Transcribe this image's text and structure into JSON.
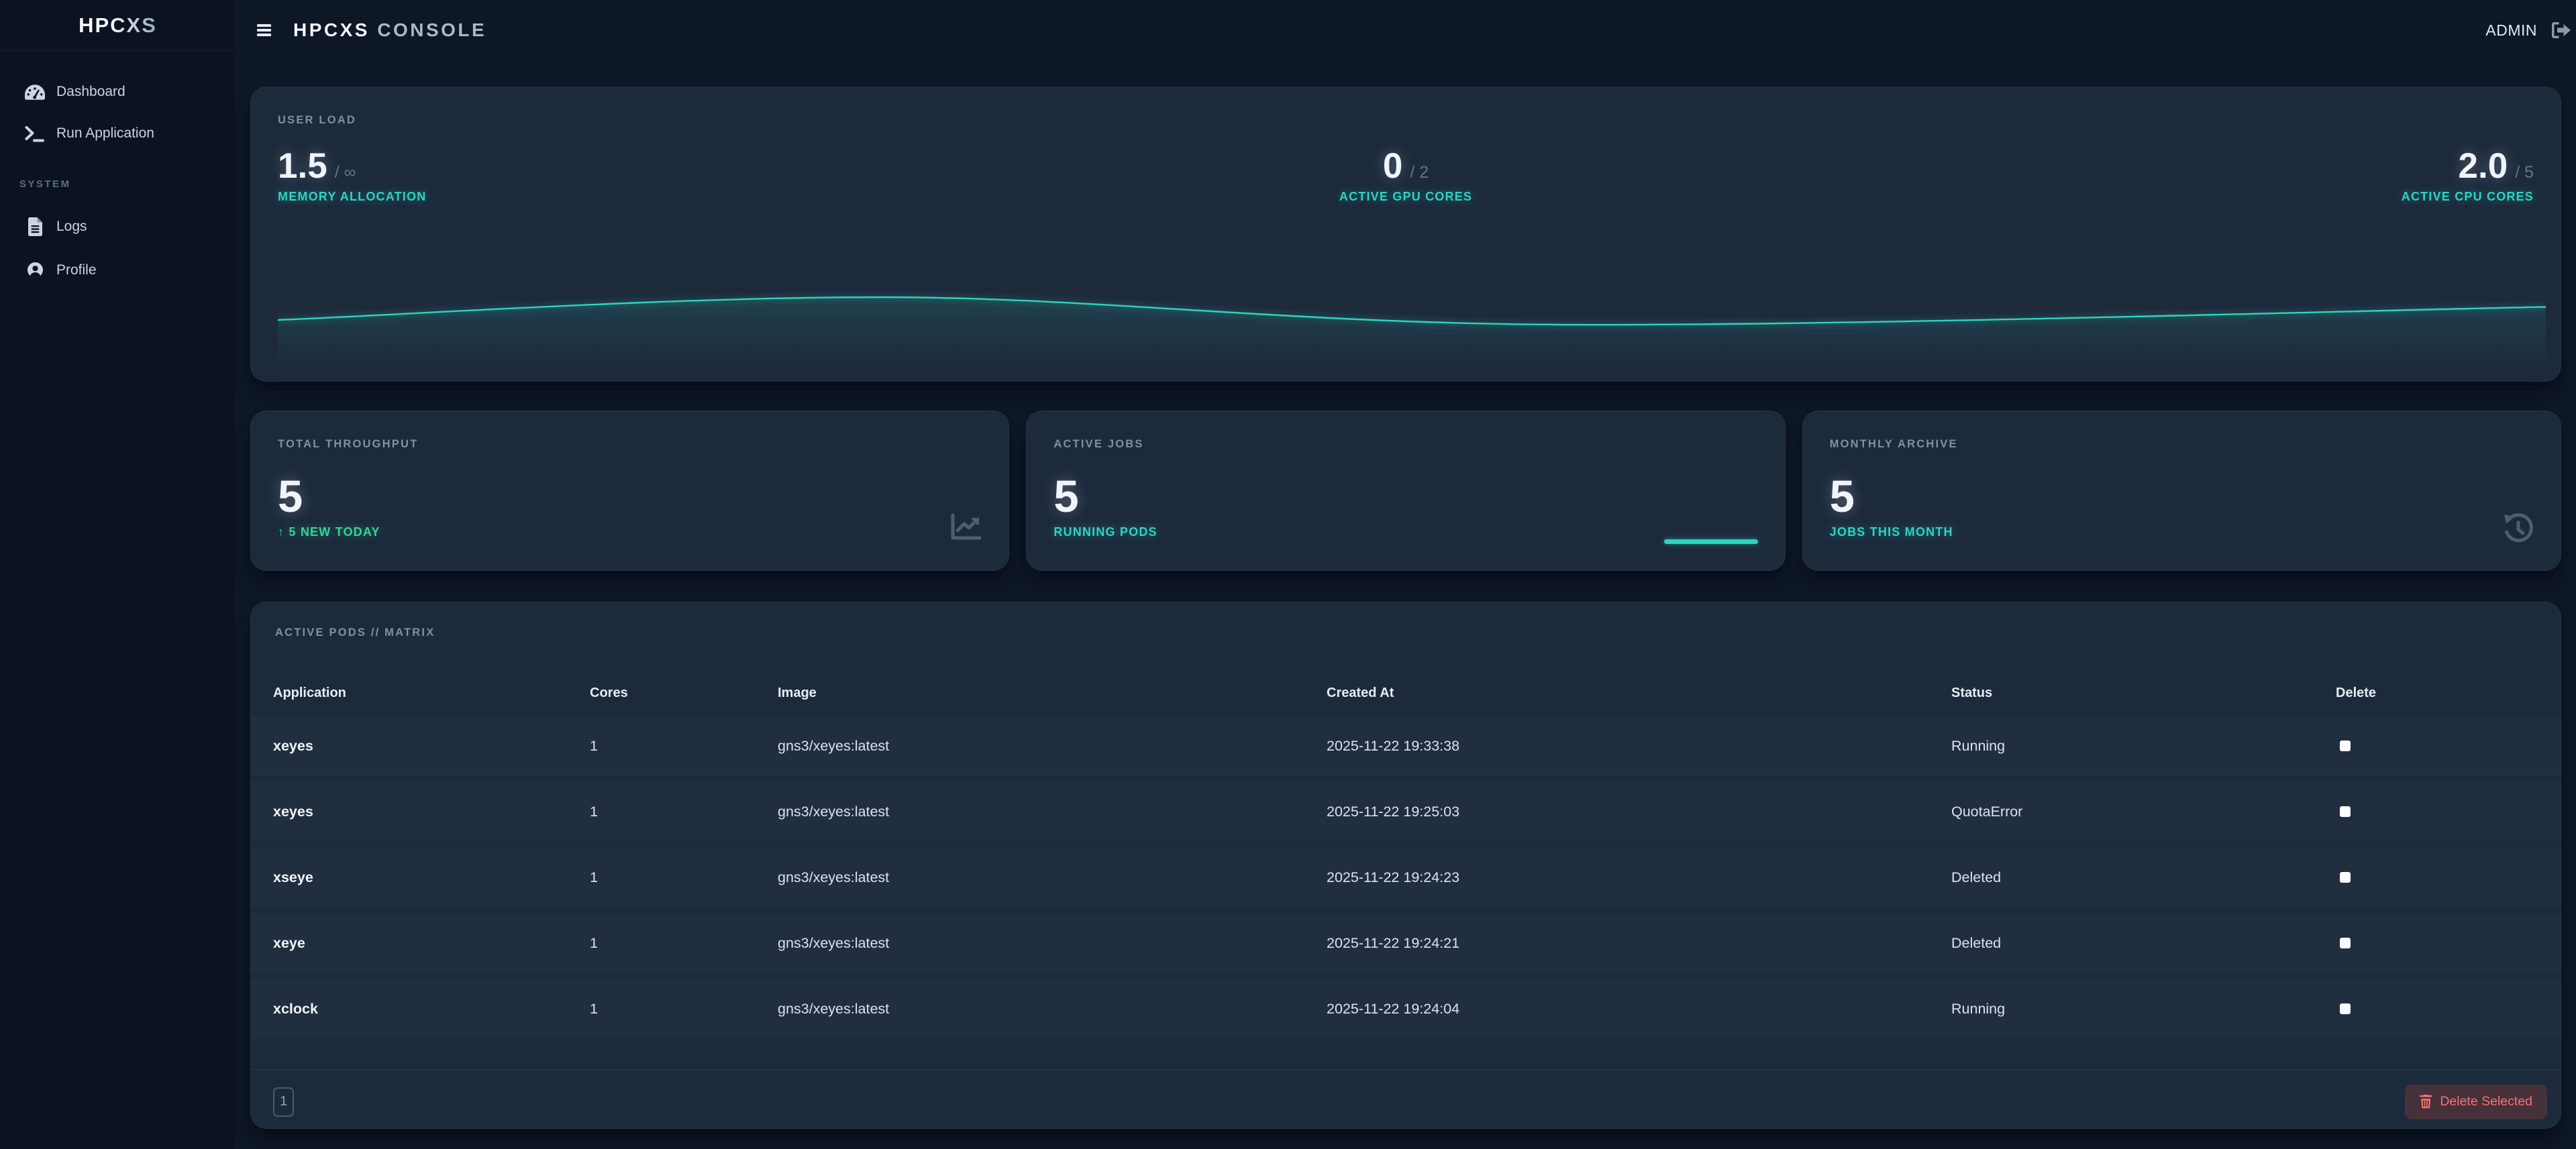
{
  "sidebar": {
    "logo": "HPCXS",
    "nav": [
      {
        "label": "Dashboard",
        "icon": "gauge-icon"
      },
      {
        "label": "Run Application",
        "icon": "terminal-icon"
      }
    ],
    "section": "SYSTEM",
    "system_nav": [
      {
        "label": "Logs",
        "icon": "file-icon"
      },
      {
        "label": "Profile",
        "icon": "user-icon"
      }
    ]
  },
  "header": {
    "title_primary": "HPCXS",
    "title_secondary": "CONSOLE",
    "user": "ADMIN"
  },
  "user_load": {
    "title": "USER LOAD",
    "stats": [
      {
        "value": "1.5",
        "denom": "/ ∞",
        "label": "MEMORY ALLOCATION"
      },
      {
        "value": "0",
        "denom": "/ 2",
        "label": "ACTIVE GPU CORES"
      },
      {
        "value": "2.0",
        "denom": "/ 5",
        "label": "ACTIVE CPU CORES"
      }
    ],
    "chart": {
      "type": "line",
      "color": "#2dd4bf",
      "points": [
        [
          0,
          0.485
        ],
        [
          0.27,
          0.228
        ],
        [
          0.565,
          0.538
        ],
        [
          1,
          0.338
        ]
      ]
    }
  },
  "stat_cards": [
    {
      "label": "TOTAL THROUGHPUT",
      "value": "5",
      "sub": "↑ 5 NEW TODAY",
      "icon": "chart-line-icon"
    },
    {
      "label": "ACTIVE JOBS",
      "value": "5",
      "sub": "RUNNING PODS",
      "icon": "sparkline"
    },
    {
      "label": "MONTHLY ARCHIVE",
      "value": "5",
      "sub": "JOBS THIS MONTH",
      "icon": "history-icon"
    }
  ],
  "pods": {
    "title": "ACTIVE PODS // MATRIX",
    "columns": [
      "Application",
      "Cores",
      "Image",
      "Created At",
      "Status",
      "Delete"
    ],
    "rows": [
      {
        "app": "xeyes",
        "cores": "1",
        "image": "gns3/xeyes:latest",
        "created": "2025-11-22 19:33:38",
        "status": "Running"
      },
      {
        "app": "xeyes",
        "cores": "1",
        "image": "gns3/xeyes:latest",
        "created": "2025-11-22 19:25:03",
        "status": "QuotaError"
      },
      {
        "app": "xseye",
        "cores": "1",
        "image": "gns3/xeyes:latest",
        "created": "2025-11-22 19:24:23",
        "status": "Deleted"
      },
      {
        "app": "xeye",
        "cores": "1",
        "image": "gns3/xeyes:latest",
        "created": "2025-11-22 19:24:21",
        "status": "Deleted"
      },
      {
        "app": "xclock",
        "cores": "1",
        "image": "gns3/xeyes:latest",
        "created": "2025-11-22 19:24:04",
        "status": "Running"
      }
    ],
    "page": "1",
    "delete_label": "Delete Selected"
  }
}
